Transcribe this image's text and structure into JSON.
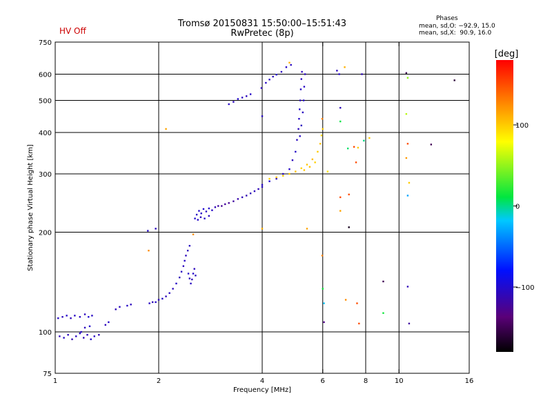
{
  "header": {
    "title": "Tromsø 20150831 15:50:00–15:51:43",
    "subtitle": "RwPretec (8p)",
    "status": "HV Off",
    "phase_title": "Phases",
    "phase_o": "mean, sd,O: −92.9, 15.0",
    "phase_x": "mean, sd,X:  90.9, 16.0"
  },
  "colorbar": {
    "label": "[deg]",
    "range": [
      -180,
      180
    ],
    "ticks": [
      {
        "value": 100,
        "label": "100"
      },
      {
        "value": 0,
        "label": "0"
      },
      {
        "value": -100,
        "label": "−100"
      }
    ]
  },
  "chart_data": {
    "type": "scatter",
    "xlabel": "Frequency [MHz]",
    "ylabel": "Stationary phase Virtual Height [km]",
    "x_scale": "log",
    "y_scale": "log",
    "xlim": [
      1,
      16
    ],
    "ylim": [
      75,
      750
    ],
    "x_ticks": [
      {
        "value": 1,
        "label": "1"
      },
      {
        "value": 2,
        "label": "2"
      },
      {
        "value": 4,
        "label": "4"
      },
      {
        "value": 6,
        "label": "6"
      },
      {
        "value": 8,
        "label": "8"
      },
      {
        "value": 10,
        "label": "10"
      },
      {
        "value": 16,
        "label": "16"
      }
    ],
    "y_ticks": [
      {
        "value": 75,
        "label": "75"
      },
      {
        "value": 100,
        "label": "100"
      },
      {
        "value": 200,
        "label": "200"
      },
      {
        "value": 300,
        "label": "300"
      },
      {
        "value": 400,
        "label": "400"
      },
      {
        "value": 500,
        "label": "500"
      },
      {
        "value": 600,
        "label": "600"
      },
      {
        "value": 750,
        "label": "750"
      }
    ],
    "x_grid": [
      2,
      4,
      6,
      8,
      10
    ],
    "y_grid": [
      100,
      200,
      300,
      400,
      500,
      600
    ],
    "points": [
      [
        1.02,
        110,
        -105
      ],
      [
        1.05,
        111,
        -108
      ],
      [
        1.08,
        112,
        -102
      ],
      [
        1.11,
        110,
        -110
      ],
      [
        1.14,
        112,
        -104
      ],
      [
        1.18,
        111,
        -106
      ],
      [
        1.22,
        113,
        -108
      ],
      [
        1.25,
        111,
        -100
      ],
      [
        1.28,
        112,
        -105
      ],
      [
        1.03,
        97,
        -110
      ],
      [
        1.06,
        96,
        -105
      ],
      [
        1.09,
        98,
        -108
      ],
      [
        1.12,
        95,
        -112
      ],
      [
        1.15,
        97,
        -106
      ],
      [
        1.18,
        99,
        -104
      ],
      [
        1.21,
        96,
        -110
      ],
      [
        1.24,
        98,
        -108
      ],
      [
        1.27,
        95,
        -102
      ],
      [
        1.3,
        97,
        -106
      ],
      [
        1.34,
        98,
        -110
      ],
      [
        1.19,
        100,
        -104
      ],
      [
        1.22,
        103,
        -108
      ],
      [
        1.26,
        104,
        -102
      ],
      [
        1.4,
        105,
        -108
      ],
      [
        1.43,
        107,
        -104
      ],
      [
        1.5,
        117,
        -110
      ],
      [
        1.54,
        119,
        -106
      ],
      [
        1.62,
        120,
        -104
      ],
      [
        1.66,
        121,
        -108
      ],
      [
        1.88,
        122,
        -106
      ],
      [
        1.92,
        123,
        -110
      ],
      [
        1.96,
        123,
        -104
      ],
      [
        2.0,
        125,
        -108
      ],
      [
        2.05,
        126,
        -105
      ],
      [
        2.1,
        128,
        -110
      ],
      [
        2.15,
        131,
        -106
      ],
      [
        2.2,
        135,
        -108
      ],
      [
        2.25,
        140,
        -104
      ],
      [
        2.3,
        146,
        -110
      ],
      [
        2.33,
        152,
        -106
      ],
      [
        2.36,
        158,
        -108
      ],
      [
        2.38,
        164,
        -104
      ],
      [
        2.4,
        170,
        -108
      ],
      [
        2.43,
        176,
        -110
      ],
      [
        2.46,
        182,
        -106
      ],
      [
        2.44,
        150,
        -104
      ],
      [
        2.46,
        145,
        -108
      ],
      [
        2.48,
        140,
        -106
      ],
      [
        2.5,
        144,
        -110
      ],
      [
        2.52,
        150,
        -104
      ],
      [
        2.54,
        155,
        -108
      ],
      [
        2.56,
        148,
        -106
      ],
      [
        1.86,
        202,
        -104
      ],
      [
        1.96,
        205,
        -108
      ],
      [
        2.1,
        410,
        115
      ],
      [
        1.87,
        176,
        125
      ],
      [
        2.52,
        197,
        125
      ],
      [
        2.55,
        220,
        -100
      ],
      [
        2.58,
        226,
        -105
      ],
      [
        2.62,
        232,
        -102
      ],
      [
        2.66,
        228,
        -104
      ],
      [
        2.7,
        235,
        -100
      ],
      [
        2.75,
        231,
        -106
      ],
      [
        2.8,
        236,
        -102
      ],
      [
        2.86,
        233,
        -104
      ],
      [
        2.92,
        238,
        -110
      ],
      [
        2.98,
        240,
        -120
      ],
      [
        3.05,
        240,
        -125
      ],
      [
        3.12,
        243,
        -122
      ],
      [
        3.2,
        245,
        -125
      ],
      [
        3.3,
        248,
        -120
      ],
      [
        3.4,
        252,
        -115
      ],
      [
        3.5,
        255,
        -110
      ],
      [
        3.6,
        258,
        -112
      ],
      [
        3.7,
        262,
        -110
      ],
      [
        3.8,
        266,
        -108
      ],
      [
        3.9,
        270,
        -110
      ],
      [
        4.0,
        274,
        -105
      ],
      [
        2.6,
        218,
        -104
      ],
      [
        2.65,
        222,
        -108
      ],
      [
        2.72,
        220,
        -102
      ],
      [
        2.8,
        224,
        -106
      ],
      [
        3.2,
        487,
        -104
      ],
      [
        3.3,
        495,
        -108
      ],
      [
        3.4,
        505,
        -102
      ],
      [
        3.5,
        510,
        -106
      ],
      [
        3.6,
        515,
        -108
      ],
      [
        3.7,
        522,
        -104
      ],
      [
        3.98,
        545,
        -108
      ],
      [
        4.1,
        565,
        -104
      ],
      [
        4.2,
        578,
        -106
      ],
      [
        4.3,
        590,
        -108
      ],
      [
        4.4,
        598,
        -102
      ],
      [
        4.55,
        610,
        -108
      ],
      [
        4.7,
        630,
        -104
      ],
      [
        4.85,
        640,
        -106
      ],
      [
        4.8,
        650,
        110
      ],
      [
        4.0,
        448,
        -104
      ],
      [
        4.0,
        205,
        110
      ],
      [
        4.0,
        278,
        -104
      ],
      [
        4.2,
        285,
        -102
      ],
      [
        4.4,
        290,
        -108
      ],
      [
        4.6,
        300,
        -106
      ],
      [
        4.8,
        310,
        -104
      ],
      [
        4.9,
        330,
        -108
      ],
      [
        5.0,
        350,
        -104
      ],
      [
        5.05,
        380,
        -106
      ],
      [
        5.1,
        410,
        -108
      ],
      [
        5.12,
        440,
        -104
      ],
      [
        5.14,
        470,
        -102
      ],
      [
        5.16,
        500,
        -108
      ],
      [
        5.18,
        540,
        -104
      ],
      [
        5.2,
        580,
        -106
      ],
      [
        5.22,
        610,
        -108
      ],
      [
        5.15,
        390,
        -104
      ],
      [
        5.2,
        420,
        -108
      ],
      [
        5.25,
        460,
        -106
      ],
      [
        5.28,
        500,
        -102
      ],
      [
        5.3,
        550,
        -104
      ],
      [
        5.33,
        600,
        -108
      ],
      [
        4.2,
        290,
        98
      ],
      [
        4.4,
        293,
        102
      ],
      [
        4.6,
        296,
        96
      ],
      [
        4.8,
        300,
        100
      ],
      [
        5.0,
        305,
        104
      ],
      [
        5.2,
        312,
        98
      ],
      [
        5.4,
        320,
        102
      ],
      [
        5.6,
        332,
        106
      ],
      [
        5.8,
        350,
        100
      ],
      [
        5.9,
        370,
        104
      ],
      [
        5.95,
        392,
        96
      ],
      [
        6.0,
        410,
        100
      ],
      [
        5.5,
        315,
        104
      ],
      [
        5.7,
        325,
        98
      ],
      [
        5.3,
        308,
        102
      ],
      [
        5.4,
        205,
        115
      ],
      [
        5.98,
        440,
        130
      ],
      [
        5.98,
        170,
        130
      ],
      [
        6.2,
        305,
        90
      ],
      [
        6.0,
        135,
        15
      ],
      [
        6.05,
        122,
        -20
      ],
      [
        6.05,
        107,
        -130
      ],
      [
        6.6,
        615,
        -108
      ],
      [
        6.7,
        600,
        -104
      ],
      [
        6.75,
        475,
        -110
      ],
      [
        6.75,
        432,
        10
      ],
      [
        6.75,
        255,
        150
      ],
      [
        6.75,
        232,
        115
      ],
      [
        6.95,
        630,
        110
      ],
      [
        7.1,
        358,
        5
      ],
      [
        7.15,
        260,
        150
      ],
      [
        7.15,
        207,
        -170
      ],
      [
        7.0,
        125,
        125
      ],
      [
        7.4,
        362,
        150
      ],
      [
        7.5,
        325,
        150
      ],
      [
        7.6,
        360,
        100
      ],
      [
        7.55,
        122,
        150
      ],
      [
        7.65,
        106,
        150
      ],
      [
        7.8,
        600,
        -110
      ],
      [
        7.9,
        378,
        0
      ],
      [
        8.2,
        385,
        100
      ],
      [
        9.0,
        142,
        -150
      ],
      [
        9.0,
        114,
        15
      ],
      [
        10.5,
        605,
        -150
      ],
      [
        10.6,
        585,
        50
      ],
      [
        10.5,
        455,
        60
      ],
      [
        10.6,
        370,
        150
      ],
      [
        10.5,
        335,
        120
      ],
      [
        10.7,
        282,
        100
      ],
      [
        10.6,
        258,
        -30
      ],
      [
        10.6,
        137,
        -110
      ],
      [
        10.7,
        106,
        -120
      ],
      [
        12.4,
        368,
        -150
      ],
      [
        14.5,
        575,
        -160
      ]
    ]
  }
}
